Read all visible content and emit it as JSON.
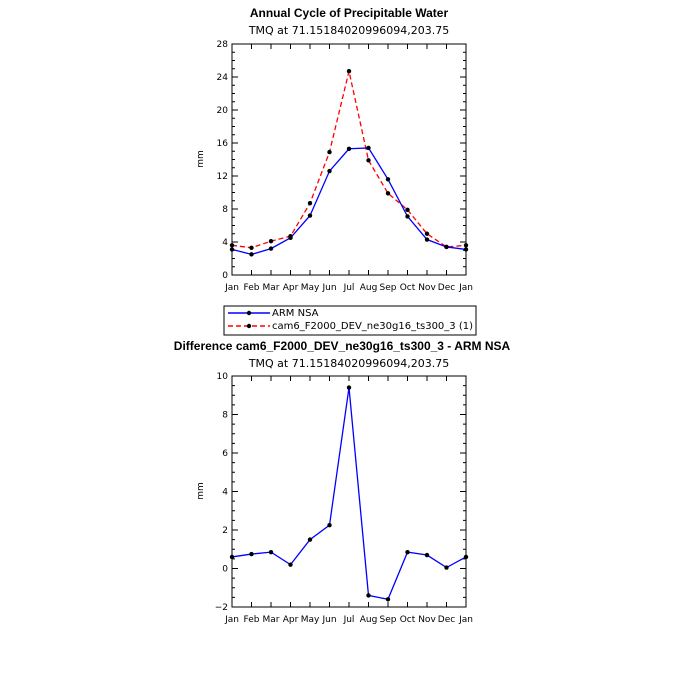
{
  "chart_data": [
    {
      "type": "line",
      "title": "Annual Cycle of Precipitable Water",
      "subtitle": "TMQ  at  71.15184020996094,203.75",
      "ylabel": "mm",
      "xlabel": "",
      "categories": [
        "Jan",
        "Feb",
        "Mar",
        "Apr",
        "May",
        "Jun",
        "Jul",
        "Aug",
        "Sep",
        "Oct",
        "Nov",
        "Dec",
        "Jan"
      ],
      "ylim": [
        0,
        28
      ],
      "yticks": [
        0,
        4,
        8,
        12,
        16,
        20,
        24,
        28
      ],
      "series": [
        {
          "name": "ARM NSA",
          "color": "#0000ff",
          "dash": "solid",
          "values": [
            3.1,
            2.5,
            3.2,
            4.5,
            7.2,
            12.6,
            15.3,
            15.4,
            11.6,
            7.1,
            4.3,
            3.4,
            3.1
          ]
        },
        {
          "name": "cam6_F2000_DEV_ne30g16_ts300_3 (1)",
          "color": "#ff0000",
          "dash": "dashed",
          "values": [
            3.6,
            3.3,
            4.1,
            4.7,
            8.7,
            14.9,
            24.7,
            13.9,
            9.9,
            7.9,
            5.0,
            3.4,
            3.6
          ]
        }
      ],
      "legend": "below"
    },
    {
      "type": "line",
      "title": "Difference cam6_F2000_DEV_ne30g16_ts300_3 - ARM NSA",
      "subtitle": "TMQ  at  71.15184020996094,203.75",
      "ylabel": "mm",
      "xlabel": "",
      "categories": [
        "Jan",
        "Feb",
        "Mar",
        "Apr",
        "May",
        "Jun",
        "Jul",
        "Aug",
        "Sep",
        "Oct",
        "Nov",
        "Dec",
        "Jan"
      ],
      "ylim": [
        -2,
        10
      ],
      "yticks": [
        -2,
        0,
        2,
        4,
        6,
        8,
        10
      ],
      "series": [
        {
          "name": "",
          "color": "#0000ff",
          "dash": "solid",
          "values": [
            0.6,
            0.75,
            0.85,
            0.2,
            1.5,
            2.25,
            9.4,
            -1.4,
            -1.6,
            0.85,
            0.7,
            0.05,
            0.6
          ]
        }
      ]
    }
  ]
}
